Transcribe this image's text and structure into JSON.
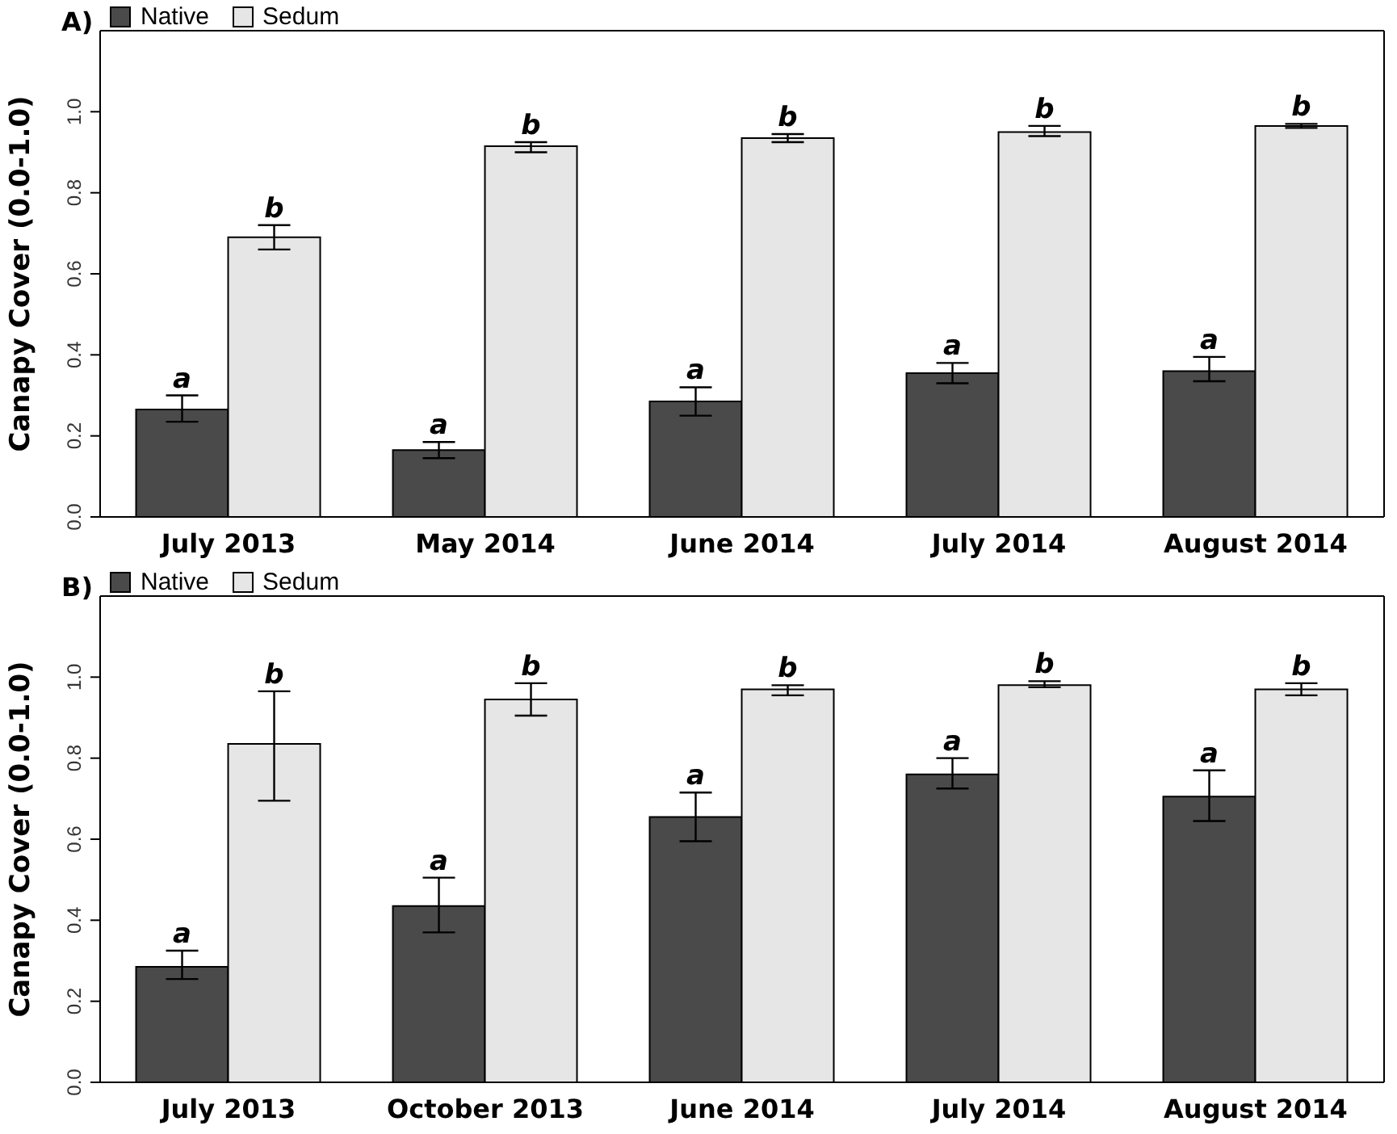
{
  "chart_data": [
    {
      "type": "bar",
      "title": "A)",
      "ylabel": "Canapy Cover (0.0-1.0)",
      "categories": [
        "July 2013",
        "May 2014",
        "June 2014",
        "July 2014",
        "August 2014"
      ],
      "ylim": [
        0,
        1.2
      ],
      "yticks": [
        {
          "value": 0,
          "label": "0.0"
        },
        {
          "value": 0.2,
          "label": "0.2"
        },
        {
          "value": 0.4,
          "label": "0.4"
        },
        {
          "value": 0.6,
          "label": "0.6"
        },
        {
          "value": 0.8,
          "label": "0.8"
        },
        {
          "value": 1,
          "label": "1.0"
        }
      ],
      "legend": "top left",
      "grid": false,
      "series": [
        {
          "name": "Native",
          "color": "#4a4a4a",
          "values": [
            0.265,
            0.165,
            0.285,
            0.355,
            0.36
          ],
          "errors": [
            [
              0.235,
              0.3
            ],
            [
              0.145,
              0.185
            ],
            [
              0.25,
              0.32
            ],
            [
              0.33,
              0.38
            ],
            [
              0.335,
              0.395
            ]
          ],
          "value_labels": [
            "a",
            "a",
            "a",
            "a",
            "a"
          ]
        },
        {
          "name": "Sedum",
          "color": "#e6e6e6",
          "values": [
            0.69,
            0.915,
            0.935,
            0.95,
            0.965
          ],
          "errors": [
            [
              0.66,
              0.72
            ],
            [
              0.9,
              0.925
            ],
            [
              0.925,
              0.945
            ],
            [
              0.94,
              0.965
            ],
            [
              0.96,
              0.97
            ]
          ],
          "value_labels": [
            "b",
            "b",
            "b",
            "b",
            "b"
          ]
        }
      ]
    },
    {
      "type": "bar",
      "title": "B)",
      "ylabel": "Canapy Cover (0.0-1.0)",
      "categories": [
        "July 2013",
        "October 2013",
        "June 2014",
        "July 2014",
        "August 2014"
      ],
      "ylim": [
        0,
        1.2
      ],
      "yticks": [
        {
          "value": 0,
          "label": "0.0"
        },
        {
          "value": 0.2,
          "label": "0.2"
        },
        {
          "value": 0.4,
          "label": "0.4"
        },
        {
          "value": 0.6,
          "label": "0.6"
        },
        {
          "value": 0.8,
          "label": "0.8"
        },
        {
          "value": 1,
          "label": "1.0"
        }
      ],
      "legend": "top left",
      "grid": false,
      "series": [
        {
          "name": "Native",
          "color": "#4a4a4a",
          "values": [
            0.285,
            0.435,
            0.655,
            0.76,
            0.705
          ],
          "errors": [
            [
              0.255,
              0.325
            ],
            [
              0.37,
              0.505
            ],
            [
              0.595,
              0.715
            ],
            [
              0.725,
              0.8
            ],
            [
              0.645,
              0.77
            ]
          ],
          "value_labels": [
            "a",
            "a",
            "a",
            "a",
            "a"
          ]
        },
        {
          "name": "Sedum",
          "color": "#e6e6e6",
          "values": [
            0.835,
            0.945,
            0.97,
            0.98,
            0.97
          ],
          "errors": [
            [
              0.695,
              0.965
            ],
            [
              0.905,
              0.985
            ],
            [
              0.955,
              0.98
            ],
            [
              0.975,
              0.99
            ],
            [
              0.955,
              0.985
            ]
          ],
          "value_labels": [
            "b",
            "b",
            "b",
            "b",
            "b"
          ]
        }
      ]
    }
  ]
}
